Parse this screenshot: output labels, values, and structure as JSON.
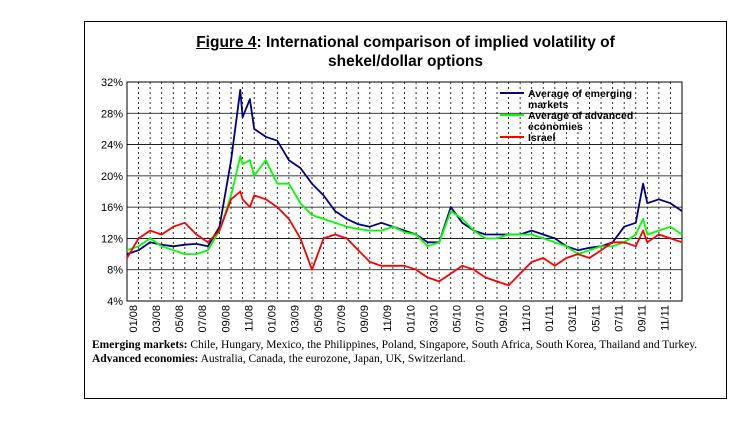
{
  "figure": {
    "label": "Figure 4",
    "title_rest": ": International comparison of implied volatility of",
    "title_line2": "shekel/dollar options"
  },
  "notes": {
    "emerging_label": "Emerging markets:",
    "emerging_text": " Chile, Hungary, Mexico, the Philippines, Poland, Singapore, South Africa, South Korea, Thailand and Turkey.",
    "advanced_label": "Advanced economies:",
    "advanced_text": " Australia, Canada, the eurozone, Japan, UK, Switzerland."
  },
  "chart_data": {
    "type": "line",
    "title": "Figure 4: International comparison of implied volatility of shekel/dollar options",
    "xlabel": "",
    "ylabel": "",
    "ylim": [
      4,
      32
    ],
    "yticks": [
      "4%",
      "8%",
      "12%",
      "16%",
      "20%",
      "24%",
      "28%",
      "32%"
    ],
    "ytick_values": [
      4,
      8,
      12,
      16,
      20,
      24,
      28,
      32
    ],
    "xticks": [
      "01/08",
      "03/08",
      "05/08",
      "07/08",
      "09/08",
      "11/08",
      "01/09",
      "03/09",
      "05/09",
      "07/09",
      "09/09",
      "11/09",
      "01/10",
      "03/10",
      "05/10",
      "07/10",
      "09/10",
      "11/10",
      "01/11",
      "03/11",
      "05/11",
      "07/11",
      "09/11",
      "11/11"
    ],
    "x_start": "2008-01",
    "x_end": "2011-12",
    "legend_position": "top-right",
    "grid": "horizontal solid, vertical dashed",
    "series": [
      {
        "name": "Average of emerging markets",
        "color": "#000080",
        "points": [
          [
            "2008-01",
            10.0
          ],
          [
            "2008-02",
            10.5
          ],
          [
            "2008-03",
            11.5
          ],
          [
            "2008-04",
            11.2
          ],
          [
            "2008-05",
            11.0
          ],
          [
            "2008-06",
            11.2
          ],
          [
            "2008-07",
            11.3
          ],
          [
            "2008-08",
            11.0
          ],
          [
            "2008-09",
            13.5
          ],
          [
            "2008-10",
            22.0
          ],
          [
            "2008-10-25",
            31.0
          ],
          [
            "2008-11",
            27.5
          ],
          [
            "2008-11-20",
            29.8
          ],
          [
            "2008-12",
            26.0
          ],
          [
            "2009-01",
            25.0
          ],
          [
            "2009-02",
            24.5
          ],
          [
            "2009-03",
            22.0
          ],
          [
            "2009-04",
            21.0
          ],
          [
            "2009-05",
            19.0
          ],
          [
            "2009-06",
            17.5
          ],
          [
            "2009-07",
            15.5
          ],
          [
            "2009-08",
            14.5
          ],
          [
            "2009-09",
            13.8
          ],
          [
            "2009-10",
            13.5
          ],
          [
            "2009-11",
            14.0
          ],
          [
            "2009-12",
            13.5
          ],
          [
            "2010-01",
            13.0
          ],
          [
            "2010-02",
            12.5
          ],
          [
            "2010-03",
            11.5
          ],
          [
            "2010-04",
            11.5
          ],
          [
            "2010-05",
            16.0
          ],
          [
            "2010-06",
            14.0
          ],
          [
            "2010-07",
            13.0
          ],
          [
            "2010-08",
            12.5
          ],
          [
            "2010-09",
            12.5
          ],
          [
            "2010-10",
            12.5
          ],
          [
            "2010-11",
            12.5
          ],
          [
            "2010-12",
            13.0
          ],
          [
            "2011-01",
            12.5
          ],
          [
            "2011-02",
            12.0
          ],
          [
            "2011-03",
            11.0
          ],
          [
            "2011-04",
            10.5
          ],
          [
            "2011-05",
            10.8
          ],
          [
            "2011-06",
            11.0
          ],
          [
            "2011-07",
            11.5
          ],
          [
            "2011-08",
            13.5
          ],
          [
            "2011-09",
            14.0
          ],
          [
            "2011-09-20",
            19.0
          ],
          [
            "2011-10",
            16.5
          ],
          [
            "2011-11",
            17.0
          ],
          [
            "2011-12",
            16.5
          ],
          [
            "2011-12-31",
            15.5
          ]
        ]
      },
      {
        "name": "Average of advanced economies",
        "color": "#00ff00",
        "points": [
          [
            "2008-01",
            10.5
          ],
          [
            "2008-02",
            11.0
          ],
          [
            "2008-03",
            12.0
          ],
          [
            "2008-04",
            11.0
          ],
          [
            "2008-05",
            10.5
          ],
          [
            "2008-06",
            10.0
          ],
          [
            "2008-07",
            10.0
          ],
          [
            "2008-08",
            10.5
          ],
          [
            "2008-09",
            13.0
          ],
          [
            "2008-10",
            17.5
          ],
          [
            "2008-10-25",
            22.5
          ],
          [
            "2008-11",
            21.5
          ],
          [
            "2008-11-20",
            22.0
          ],
          [
            "2008-12",
            20.0
          ],
          [
            "2009-01",
            22.0
          ],
          [
            "2009-02",
            19.0
          ],
          [
            "2009-03",
            19.0
          ],
          [
            "2009-04",
            16.5
          ],
          [
            "2009-05",
            15.0
          ],
          [
            "2009-06",
            14.5
          ],
          [
            "2009-07",
            14.0
          ],
          [
            "2009-08",
            13.5
          ],
          [
            "2009-09",
            13.2
          ],
          [
            "2009-10",
            13.0
          ],
          [
            "2009-11",
            13.0
          ],
          [
            "2009-12",
            13.5
          ],
          [
            "2010-01",
            12.8
          ],
          [
            "2010-02",
            12.5
          ],
          [
            "2010-03",
            11.0
          ],
          [
            "2010-04",
            11.5
          ],
          [
            "2010-05",
            15.5
          ],
          [
            "2010-06",
            14.5
          ],
          [
            "2010-07",
            13.0
          ],
          [
            "2010-08",
            12.0
          ],
          [
            "2010-09",
            12.0
          ],
          [
            "2010-10",
            12.5
          ],
          [
            "2010-11",
            12.5
          ],
          [
            "2010-12",
            12.5
          ],
          [
            "2011-01",
            12.0
          ],
          [
            "2011-02",
            11.5
          ],
          [
            "2011-03",
            11.0
          ],
          [
            "2011-04",
            10.0
          ],
          [
            "2011-05",
            10.5
          ],
          [
            "2011-06",
            11.0
          ],
          [
            "2011-07",
            11.0
          ],
          [
            "2011-08",
            11.5
          ],
          [
            "2011-09",
            12.5
          ],
          [
            "2011-09-20",
            14.5
          ],
          [
            "2011-10",
            12.5
          ],
          [
            "2011-11",
            13.0
          ],
          [
            "2011-12",
            13.5
          ],
          [
            "2011-12-31",
            12.5
          ]
        ]
      },
      {
        "name": "Israel",
        "color": "#ff0000",
        "points": [
          [
            "2008-01",
            9.5
          ],
          [
            "2008-02",
            12.0
          ],
          [
            "2008-03",
            13.0
          ],
          [
            "2008-04",
            12.5
          ],
          [
            "2008-05",
            13.5
          ],
          [
            "2008-06",
            14.0
          ],
          [
            "2008-07",
            12.5
          ],
          [
            "2008-08",
            11.5
          ],
          [
            "2008-09",
            13.0
          ],
          [
            "2008-10",
            17.0
          ],
          [
            "2008-10-25",
            18.0
          ],
          [
            "2008-11",
            17.0
          ],
          [
            "2008-11-20",
            16.0
          ],
          [
            "2008-12",
            17.5
          ],
          [
            "2009-01",
            17.0
          ],
          [
            "2009-02",
            16.0
          ],
          [
            "2009-03",
            14.5
          ],
          [
            "2009-04",
            12.0
          ],
          [
            "2009-05",
            8.0
          ],
          [
            "2009-06",
            12.0
          ],
          [
            "2009-07",
            12.5
          ],
          [
            "2009-08",
            12.0
          ],
          [
            "2009-09",
            10.5
          ],
          [
            "2009-10",
            9.0
          ],
          [
            "2009-11",
            8.5
          ],
          [
            "2009-12",
            8.5
          ],
          [
            "2010-01",
            8.5
          ],
          [
            "2010-02",
            8.0
          ],
          [
            "2010-03",
            7.0
          ],
          [
            "2010-04",
            6.5
          ],
          [
            "2010-05",
            7.5
          ],
          [
            "2010-06",
            8.5
          ],
          [
            "2010-07",
            8.0
          ],
          [
            "2010-08",
            7.0
          ],
          [
            "2010-09",
            6.5
          ],
          [
            "2010-10",
            6.0
          ],
          [
            "2010-11",
            7.5
          ],
          [
            "2010-12",
            9.0
          ],
          [
            "2011-01",
            9.5
          ],
          [
            "2011-02",
            8.5
          ],
          [
            "2011-03",
            9.5
          ],
          [
            "2011-04",
            10.0
          ],
          [
            "2011-05",
            9.5
          ],
          [
            "2011-06",
            10.5
          ],
          [
            "2011-07",
            11.5
          ],
          [
            "2011-08",
            11.5
          ],
          [
            "2011-09",
            11.0
          ],
          [
            "2011-09-20",
            13.0
          ],
          [
            "2011-10",
            11.5
          ],
          [
            "2011-11",
            12.5
          ],
          [
            "2011-12",
            12.0
          ],
          [
            "2011-12-31",
            11.5
          ]
        ]
      }
    ]
  }
}
